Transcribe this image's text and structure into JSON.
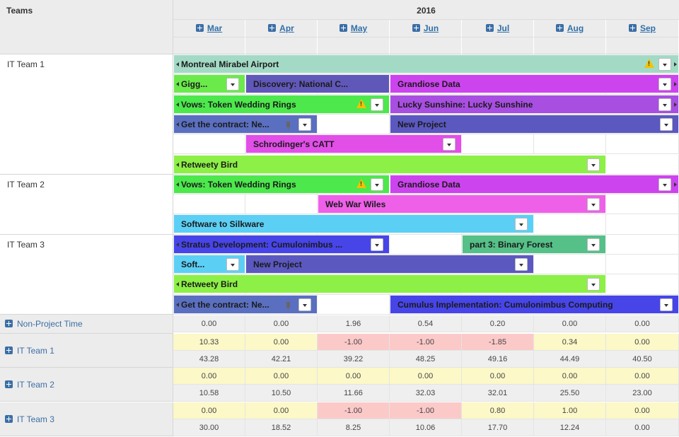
{
  "header": {
    "teams_title": "Teams",
    "year": "2016"
  },
  "months": [
    "Mar",
    "Apr",
    "May",
    "Jun",
    "Jul",
    "Aug",
    "Sep"
  ],
  "teams": [
    {
      "name": "IT Team 1"
    },
    {
      "name": "IT Team 2"
    },
    {
      "name": "IT Team 3"
    }
  ],
  "bars": [
    {
      "label": "Montreal Mirabel Airport",
      "color": "#a3dac6",
      "warning": true,
      "dropdown": true,
      "arrow_left": true,
      "arrow_right": true
    },
    {
      "label": "Gigg...",
      "color": "#6bea4c",
      "dropdown": true,
      "arrow_left": true
    },
    {
      "label": "Discovery: National C...",
      "color": "#6058b8",
      "arrow_left": false
    },
    {
      "label": "Grandiose Data",
      "color": "#cc44ee",
      "dropdown": true,
      "arrow_right": true
    },
    {
      "label": "Vows: Token Wedding Rings",
      "color": "#4ce84c",
      "warning": true,
      "dropdown": true,
      "arrow_left": true
    },
    {
      "label": "Lucky Sunshine: Lucky Sunshine",
      "color": "#a84ee0",
      "dropdown": true,
      "arrow_right": true
    },
    {
      "label": "Get the contract: Ne...",
      "color": "#5a6fc0",
      "pin": true,
      "dropdown": true,
      "arrow_left": true
    },
    {
      "label": "New Project",
      "color": "#5b58c0",
      "dropdown": true
    },
    {
      "label": "Schrodinger's CATT",
      "color": "#e14ee8",
      "dropdown": true
    },
    {
      "label": "Retweety Bird",
      "color": "#8df046",
      "dropdown": true,
      "arrow_left": true
    },
    {
      "label": "Vows: Token Wedding Rings",
      "color": "#4ce84c",
      "warning": true,
      "dropdown": true,
      "arrow_left": true
    },
    {
      "label": "Grandiose Data",
      "color": "#cc44ee",
      "dropdown": true,
      "arrow_right": true
    },
    {
      "label": "Web War Wiles",
      "color": "#ee60e8",
      "dropdown": true
    },
    {
      "label": "Software to Silkware",
      "color": "#5ccff5",
      "dropdown": true
    },
    {
      "label": "Stratus Development: Cumulonimbus ...",
      "color": "#4745e8",
      "dropdown": true,
      "arrow_left": true
    },
    {
      "label": "part 3: Binary Forest",
      "color": "#55c088",
      "dropdown": true
    },
    {
      "label": "Soft...",
      "color": "#5ccff5",
      "dropdown": true
    },
    {
      "label": "New Project",
      "color": "#5b58c0",
      "dropdown": true
    },
    {
      "label": "Retweety Bird",
      "color": "#8df046",
      "dropdown": true,
      "arrow_left": true
    },
    {
      "label": "Get the contract: Ne...",
      "color": "#5a6fc0",
      "pin": true,
      "dropdown": true,
      "arrow_left": true
    },
    {
      "label": "Cumulus Implementation: Cumulonimbus Computing",
      "color": "#4745e8",
      "dropdown": true
    }
  ],
  "summary": {
    "non_project": {
      "label": "Non-Project Time",
      "values": [
        "0.00",
        "0.00",
        "1.96",
        "0.54",
        "0.20",
        "0.00",
        "0.00"
      ]
    },
    "teams": [
      {
        "label": "IT Team 1",
        "top": [
          "10.33",
          "0.00",
          "-1.00",
          "-1.00",
          "-1.85",
          "0.34",
          "0.00"
        ],
        "top_status": [
          "y",
          "y",
          "r",
          "r",
          "r",
          "y",
          "y"
        ],
        "bottom": [
          "43.28",
          "42.21",
          "39.22",
          "48.25",
          "49.16",
          "44.49",
          "40.50"
        ]
      },
      {
        "label": "IT Team 2",
        "top": [
          "0.00",
          "0.00",
          "0.00",
          "0.00",
          "0.00",
          "0.00",
          "0.00"
        ],
        "top_status": [
          "y",
          "y",
          "y",
          "y",
          "y",
          "y",
          "y"
        ],
        "bottom": [
          "10.58",
          "10.50",
          "11.66",
          "32.03",
          "32.01",
          "25.50",
          "23.00"
        ]
      },
      {
        "label": "IT Team 3",
        "top": [
          "0.00",
          "0.00",
          "-1.00",
          "-1.00",
          "0.80",
          "1.00",
          "0.00"
        ],
        "top_status": [
          "y",
          "y",
          "r",
          "r",
          "y",
          "y",
          "y"
        ],
        "bottom": [
          "30.00",
          "18.52",
          "8.25",
          "10.06",
          "17.70",
          "12.24",
          "0.00"
        ]
      }
    ]
  }
}
